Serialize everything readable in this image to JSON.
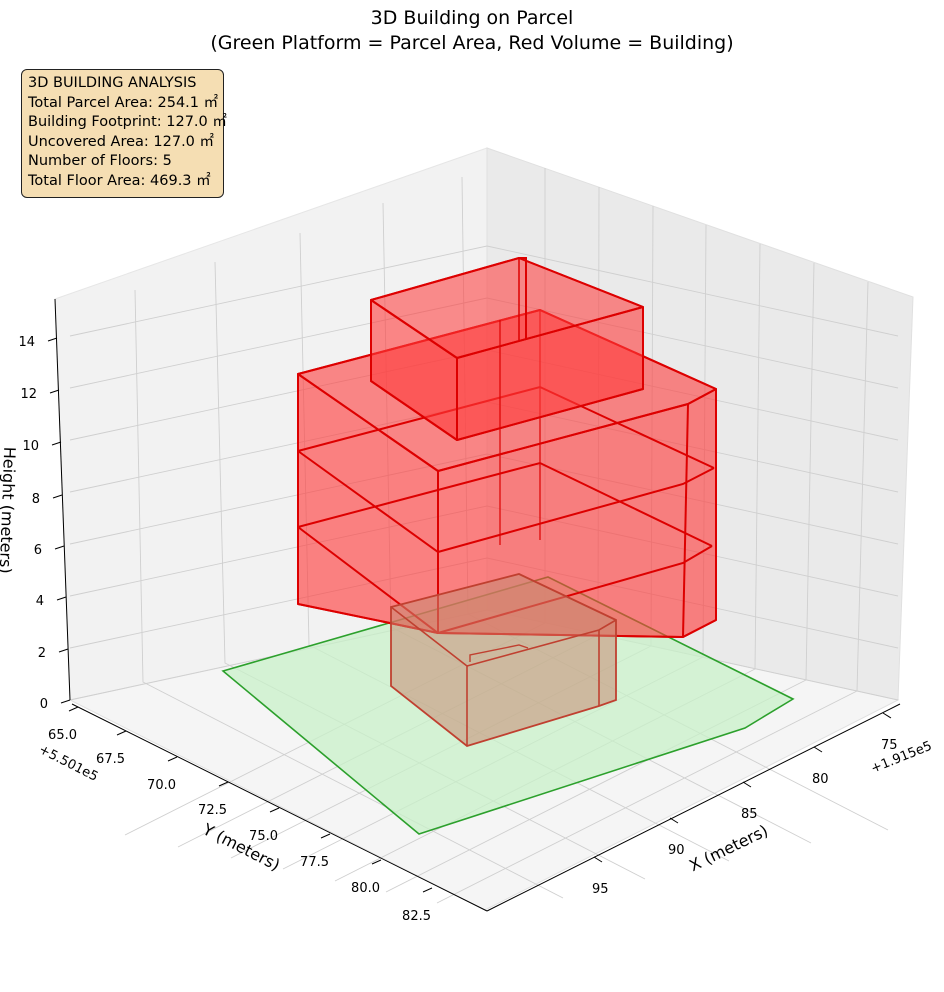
{
  "chart_data": {
    "type": "3d-polygon",
    "title": "3D Building on Parcel",
    "subtitle": "(Green Platform = Parcel Area, Red Volume = Building)",
    "xlabel": "X (meters)",
    "ylabel": "Y (meters)",
    "zlabel": "Height (meters)",
    "x_offset_label": "+1.915e5",
    "y_offset_label": "+5.501e5",
    "xticks": [
      "75",
      "80",
      "85",
      "90",
      "95"
    ],
    "yticks": [
      "65.0",
      "67.5",
      "70.0",
      "72.5",
      "75.0",
      "77.5",
      "80.0",
      "82.5"
    ],
    "zticks": [
      "0",
      "2",
      "4",
      "6",
      "8",
      "10",
      "12",
      "14"
    ],
    "colors": {
      "parcel": "#2ca02c",
      "parcel_fill": "#c8f0c8",
      "building": "#dd0000",
      "building_fill": "#ff3b3b"
    },
    "parcel": {
      "label": "Green Platform = Parcel Area"
    },
    "building": {
      "label": "Red Volume = Building",
      "floors": 5
    }
  },
  "stats_box": {
    "heading": "3D BUILDING ANALYSIS",
    "lines": [
      "Total Parcel Area: 254.1 ㎡",
      "Building Footprint: 127.0 ㎡",
      "Uncovered Area: 127.0 ㎡",
      "Number of Floors: 5",
      "Total Floor Area: 469.3 ㎡"
    ]
  }
}
